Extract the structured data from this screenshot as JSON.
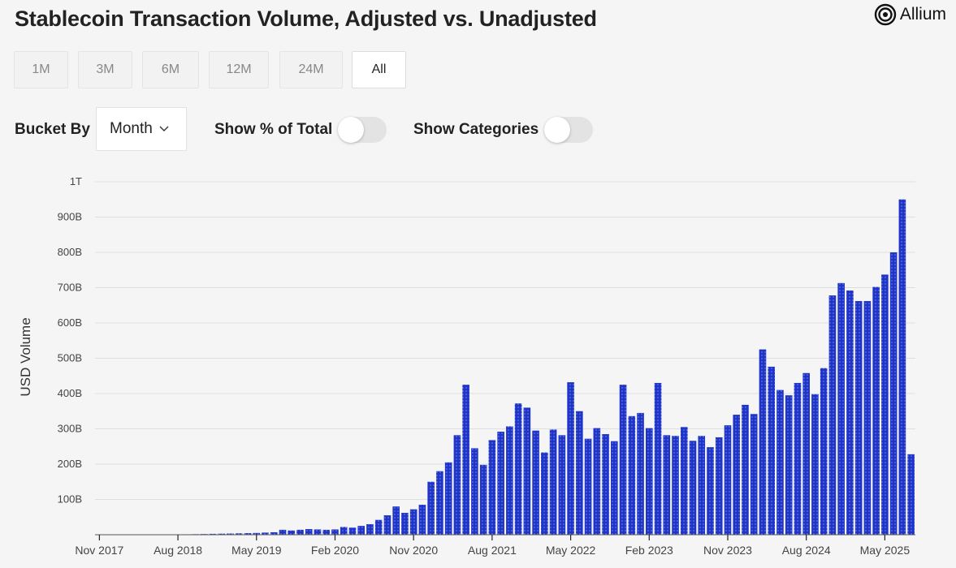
{
  "title": "Stablecoin Transaction Volume, Adjusted vs. Unadjusted",
  "brand": {
    "name": "Allium",
    "icon": "allium-logo-icon"
  },
  "range_buttons": [
    {
      "label": "1M",
      "active": false
    },
    {
      "label": "3M",
      "active": false
    },
    {
      "label": "6M",
      "active": false
    },
    {
      "label": "12M",
      "active": false
    },
    {
      "label": "24M",
      "active": false
    },
    {
      "label": "All",
      "active": true
    }
  ],
  "controls": {
    "bucket_label": "Bucket By",
    "bucket_value": "Month",
    "show_pct_label": "Show % of Total",
    "show_pct_on": false,
    "show_categories_label": "Show Categories",
    "show_categories_on": false
  },
  "colors": {
    "bar": "#1f35c9",
    "grid": "#dedede",
    "axis": "#555555",
    "background": "#f5f5f5"
  },
  "chart_data": {
    "type": "bar",
    "ylabel": "USD Volume",
    "ylim": [
      0,
      1000
    ],
    "y_unit": "billions USD",
    "y_ticks": [
      {
        "value": 100,
        "label": "100B"
      },
      {
        "value": 200,
        "label": "200B"
      },
      {
        "value": 300,
        "label": "300B"
      },
      {
        "value": 400,
        "label": "400B"
      },
      {
        "value": 500,
        "label": "500B"
      },
      {
        "value": 600,
        "label": "600B"
      },
      {
        "value": 700,
        "label": "700B"
      },
      {
        "value": 800,
        "label": "800B"
      },
      {
        "value": 900,
        "label": "900B"
      },
      {
        "value": 1000,
        "label": "1T"
      }
    ],
    "x_start": "2017-11",
    "x_ticks": [
      "Nov 2017",
      "Aug 2018",
      "May 2019",
      "Feb 2020",
      "Nov 2020",
      "Aug 2021",
      "May 2022",
      "Feb 2023",
      "Nov 2023",
      "Aug 2024",
      "May 2025"
    ],
    "grid": true,
    "legend": "none",
    "values": [
      0.3,
      0.4,
      0.5,
      0.5,
      0.6,
      0.7,
      0.8,
      0.9,
      1,
      1,
      1.2,
      1.5,
      2,
      2.5,
      3,
      3.5,
      4,
      4.5,
      5,
      6,
      7,
      14,
      12,
      14,
      16,
      15,
      14,
      15,
      22,
      20,
      25,
      30,
      42,
      55,
      80,
      62,
      72,
      85,
      150,
      180,
      205,
      282,
      425,
      245,
      198,
      268,
      292,
      307,
      372,
      360,
      295,
      233,
      298,
      282,
      432,
      350,
      272,
      302,
      285,
      265,
      425,
      336,
      345,
      302,
      430,
      282,
      280,
      305,
      266,
      280,
      248,
      276,
      310,
      340,
      368,
      342,
      525,
      476,
      410,
      395,
      430,
      458,
      398,
      472,
      678,
      713,
      692,
      662,
      662,
      702,
      737,
      800,
      950,
      228
    ]
  }
}
